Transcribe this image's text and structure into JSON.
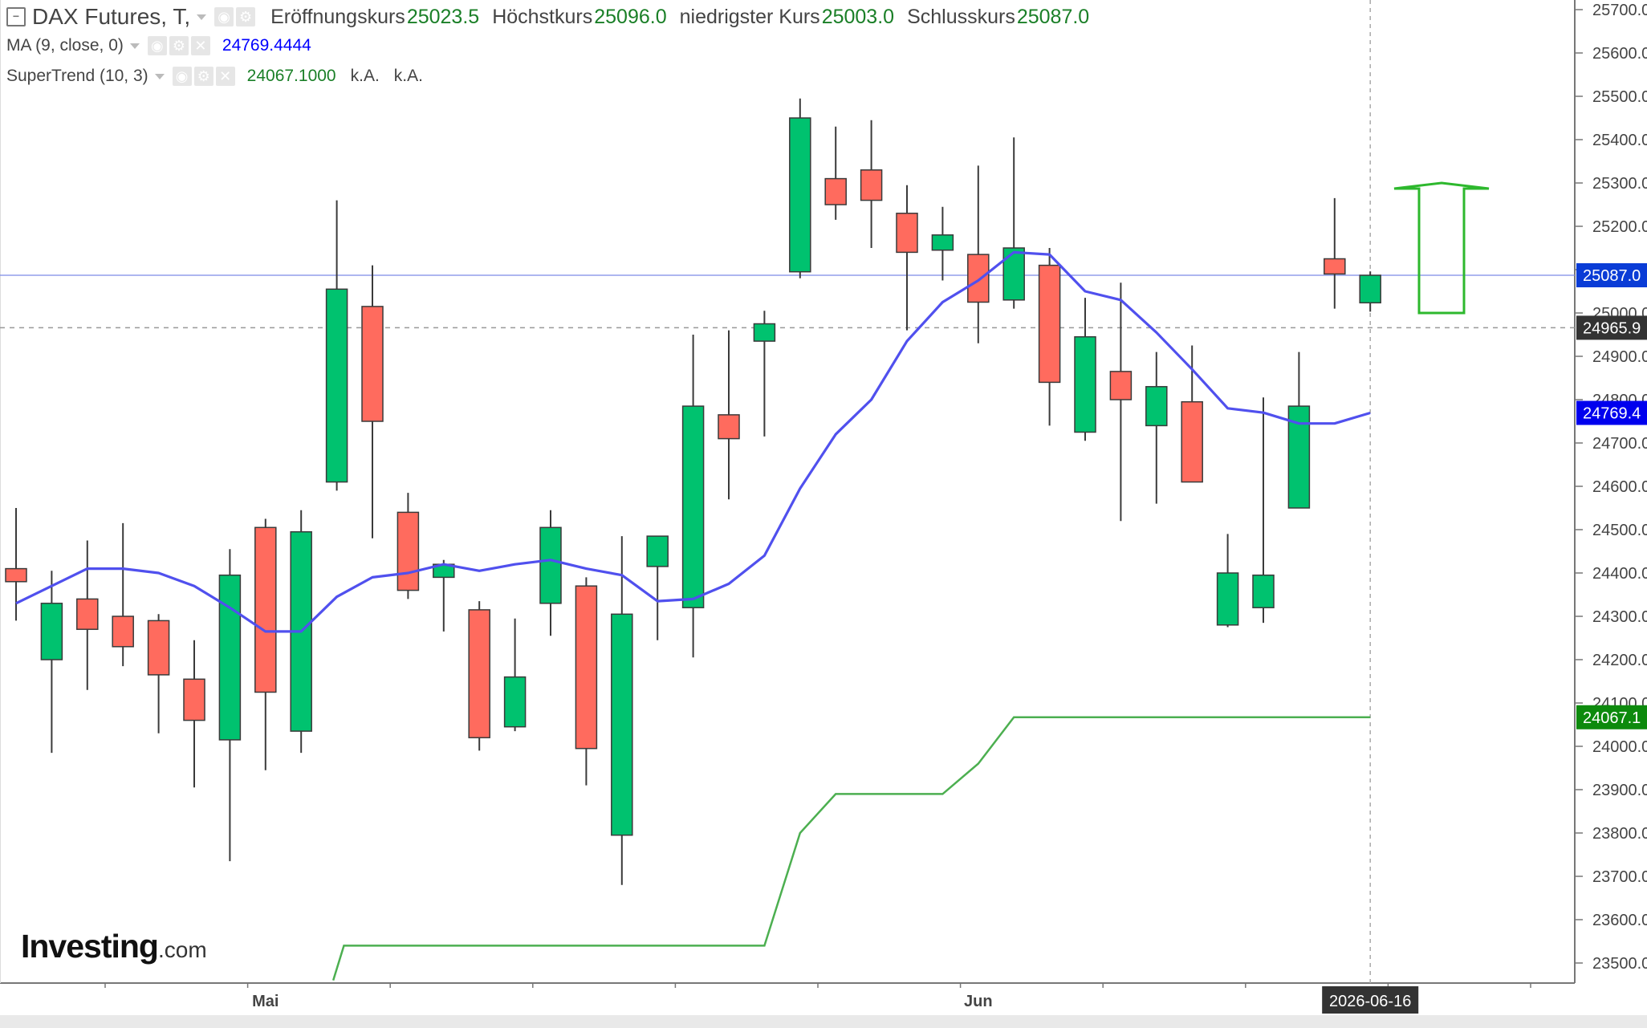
{
  "legend": {
    "symbol": "DAX Futures, T,",
    "ohlc": [
      {
        "key": "Eröffnungskurs",
        "value": "25023.5"
      },
      {
        "key": "Höchstkurs",
        "value": "25096.0"
      },
      {
        "key": "niedrigster Kurs",
        "value": "25003.0"
      },
      {
        "key": "Schlusskurs",
        "value": "25087.0"
      }
    ],
    "ma_label": "MA (9, close, 0)",
    "ma_value": "24769.4444",
    "st_label": "SuperTrend (10, 3)",
    "st_value": "24067.1000",
    "st_na1": "k.A.",
    "st_na2": "k.A."
  },
  "logo": {
    "brand": "Investing",
    "suffix": ".com"
  },
  "colors": {
    "up": "#00c26f",
    "down": "#ff6b5e",
    "ma": "#5050ee",
    "supertrend": "#4caf50",
    "arrow": "#2db82d",
    "last_price": "#0a3cd6",
    "ma_badge": "#0000ee",
    "st_badge": "#0d8a0d",
    "cross_badge": "#333333"
  },
  "chart_data": {
    "type": "candlestick",
    "title": "DAX Futures, T",
    "x_labels": [
      {
        "index": 7,
        "label": "Mai"
      },
      {
        "index": 27,
        "label": "Jun"
      },
      {
        "index": 38,
        "label": "2026-06-16"
      }
    ],
    "ylim": [
      23450,
      25750
    ],
    "y_ticks": [
      23500.0,
      23600.0,
      23700.0,
      23800.0,
      23900.0,
      24000.0,
      24100.0,
      24200.0,
      24300.0,
      24400.0,
      24500.0,
      24600.0,
      24700.0,
      24800.0,
      24900.0,
      25000.0,
      25100.0,
      25200.0,
      25300.0,
      25400.0,
      25500.0,
      25600.0,
      25700.0
    ],
    "candles": [
      {
        "o": 24410,
        "h": 24550,
        "l": 24290,
        "c": 24380
      },
      {
        "o": 24200,
        "h": 24405,
        "l": 23985,
        "c": 24330
      },
      {
        "o": 24340,
        "h": 24475,
        "l": 24130,
        "c": 24270
      },
      {
        "o": 24300,
        "h": 24515,
        "l": 24185,
        "c": 24230
      },
      {
        "o": 24290,
        "h": 24305,
        "l": 24030,
        "c": 24165
      },
      {
        "o": 24155,
        "h": 24245,
        "l": 23905,
        "c": 24060
      },
      {
        "o": 24015,
        "h": 24455,
        "l": 23735,
        "c": 24395
      },
      {
        "o": 24505,
        "h": 24525,
        "l": 23945,
        "c": 24125
      },
      {
        "o": 24035,
        "h": 24545,
        "l": 23985,
        "c": 24495
      },
      {
        "o": 24610,
        "h": 25260,
        "l": 24590,
        "c": 25055
      },
      {
        "o": 25015,
        "h": 25110,
        "l": 24480,
        "c": 24750
      },
      {
        "o": 24540,
        "h": 24585,
        "l": 24340,
        "c": 24360
      },
      {
        "o": 24390,
        "h": 24430,
        "l": 24265,
        "c": 24420
      },
      {
        "o": 24315,
        "h": 24335,
        "l": 23990,
        "c": 24020
      },
      {
        "o": 24045,
        "h": 24295,
        "l": 24035,
        "c": 24160
      },
      {
        "o": 24330,
        "h": 24545,
        "l": 24255,
        "c": 24505
      },
      {
        "o": 24370,
        "h": 24390,
        "l": 23910,
        "c": 23995
      },
      {
        "o": 23795,
        "h": 24485,
        "l": 23680,
        "c": 24305
      },
      {
        "o": 24415,
        "h": 24485,
        "l": 24245,
        "c": 24485
      },
      {
        "o": 24320,
        "h": 24950,
        "l": 24205,
        "c": 24785
      },
      {
        "o": 24765,
        "h": 24960,
        "l": 24570,
        "c": 24710
      },
      {
        "o": 24935,
        "h": 25005,
        "l": 24715,
        "c": 24975
      },
      {
        "o": 25095,
        "h": 25495,
        "l": 25080,
        "c": 25450
      },
      {
        "o": 25310,
        "h": 25430,
        "l": 25215,
        "c": 25250
      },
      {
        "o": 25330,
        "h": 25445,
        "l": 25150,
        "c": 25260
      },
      {
        "o": 25230,
        "h": 25295,
        "l": 24960,
        "c": 25140
      },
      {
        "o": 25145,
        "h": 25245,
        "l": 25075,
        "c": 25180
      },
      {
        "o": 25135,
        "h": 25340,
        "l": 24930,
        "c": 25025
      },
      {
        "o": 25030,
        "h": 25405,
        "l": 25010,
        "c": 25150
      },
      {
        "o": 25110,
        "h": 25150,
        "l": 24740,
        "c": 24840
      },
      {
        "o": 24725,
        "h": 25035,
        "l": 24705,
        "c": 24945
      },
      {
        "o": 24865,
        "h": 25070,
        "l": 24520,
        "c": 24800
      },
      {
        "o": 24740,
        "h": 24910,
        "l": 24560,
        "c": 24830
      },
      {
        "o": 24795,
        "h": 24925,
        "l": 24610,
        "c": 24610
      },
      {
        "o": 24280,
        "h": 24490,
        "l": 24275,
        "c": 24400
      },
      {
        "o": 24320,
        "h": 24805,
        "l": 24285,
        "c": 24395
      },
      {
        "o": 24550,
        "h": 24910,
        "l": 24550,
        "c": 24785
      },
      {
        "o": 25125,
        "h": 25265,
        "l": 25010,
        "c": 25090
      },
      {
        "o": 25023.5,
        "h": 25096,
        "l": 25003,
        "c": 25087
      }
    ],
    "ma": [
      24330,
      24370,
      24410,
      24410,
      24400,
      24370,
      24320,
      24265,
      24265,
      24345,
      24390,
      24400,
      24420,
      24405,
      24420,
      24430,
      24410,
      24395,
      24335,
      24340,
      24375,
      24440,
      24595,
      24720,
      24800,
      24935,
      25025,
      25075,
      25140,
      25135,
      25050,
      25030,
      24955,
      24870,
      24780,
      24770,
      24745,
      24745,
      24769.4
    ],
    "supertrend": [
      {
        "x": 8.9,
        "y": 23460
      },
      {
        "x": 9.2,
        "y": 23540
      },
      {
        "x": 21,
        "y": 23540
      },
      {
        "x": 22,
        "y": 23800
      },
      {
        "x": 23,
        "y": 23890
      },
      {
        "x": 26,
        "y": 23890
      },
      {
        "x": 27,
        "y": 23960
      },
      {
        "x": 28,
        "y": 24067.1
      },
      {
        "x": 38,
        "y": 24067.1
      }
    ],
    "price_badges": [
      {
        "value": 25087.0,
        "label": "25087.0",
        "kind": "last_price"
      },
      {
        "value": 24965.9,
        "label": "24965.9",
        "kind": "crosshair"
      },
      {
        "value": 24769.4,
        "label": "24769.4",
        "kind": "ma"
      },
      {
        "value": 24067.1,
        "label": "24067.1",
        "kind": "supertrend"
      }
    ],
    "crosshair": {
      "index": 38,
      "price": 24965.9
    },
    "annotation": {
      "type": "arrow-up",
      "from_index": 40,
      "from_price": 25000,
      "to_price": 25300
    }
  }
}
